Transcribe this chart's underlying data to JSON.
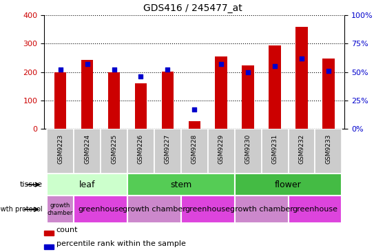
{
  "title": "GDS416 / 245477_at",
  "samples": [
    "GSM9223",
    "GSM9224",
    "GSM9225",
    "GSM9226",
    "GSM9227",
    "GSM9228",
    "GSM9229",
    "GSM9230",
    "GSM9231",
    "GSM9232",
    "GSM9233"
  ],
  "counts": [
    200,
    242,
    200,
    160,
    202,
    28,
    254,
    224,
    293,
    358,
    248
  ],
  "percentiles": [
    52,
    57,
    52,
    46,
    52,
    17,
    57,
    50,
    55,
    62,
    51
  ],
  "ylim_left": [
    0,
    400
  ],
  "ylim_right": [
    0,
    100
  ],
  "yticks_left": [
    0,
    100,
    200,
    300,
    400
  ],
  "yticks_right": [
    0,
    25,
    50,
    75,
    100
  ],
  "bar_color": "#cc0000",
  "dot_color": "#0000cc",
  "tissue_groups": [
    {
      "label": "leaf",
      "start": 0,
      "end": 3,
      "color": "#ccffcc"
    },
    {
      "label": "stem",
      "start": 3,
      "end": 7,
      "color": "#55cc55"
    },
    {
      "label": "flower",
      "start": 7,
      "end": 11,
      "color": "#44bb44"
    }
  ],
  "growth_groups": [
    {
      "label": "growth\nchamber",
      "start": 0,
      "end": 1,
      "color": "#cc88cc"
    },
    {
      "label": "greenhouse",
      "start": 1,
      "end": 3,
      "color": "#dd44dd"
    },
    {
      "label": "growth chamber",
      "start": 3,
      "end": 5,
      "color": "#cc88cc"
    },
    {
      "label": "greenhouse",
      "start": 5,
      "end": 7,
      "color": "#dd44dd"
    },
    {
      "label": "growth chamber",
      "start": 7,
      "end": 9,
      "color": "#cc88cc"
    },
    {
      "label": "greenhouse",
      "start": 9,
      "end": 11,
      "color": "#dd44dd"
    }
  ],
  "left_axis_color": "#cc0000",
  "right_axis_color": "#0000cc",
  "grid_color": "#000000",
  "bg_color": "#ffffff",
  "sample_bg_color": "#cccccc"
}
